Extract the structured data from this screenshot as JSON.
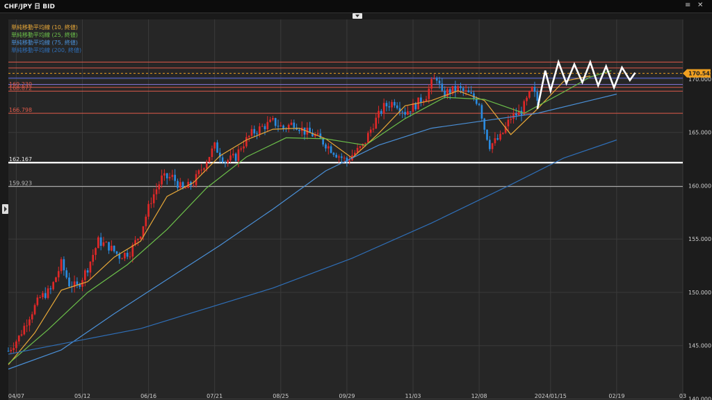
{
  "window": {
    "title": "CHF/JPY 日 BID",
    "menu_icon": "hamburger-icon",
    "close_icon": "close-icon"
  },
  "legend": [
    {
      "label": "単純移動平均線 (10, 終値)",
      "color": "#e8a838"
    },
    {
      "label": "単純移動平均線 (25, 終値)",
      "color": "#6cc04a"
    },
    {
      "label": "単純移動平均線 (75, 終値)",
      "color": "#4a90d8"
    },
    {
      "label": "単純移動平均線 (200, 終値)",
      "color": "#2f6fb8"
    }
  ],
  "current_price": {
    "label": "170.542",
    "value": 170.542,
    "color": "#f0a020"
  },
  "colors": {
    "up": "#e02828",
    "down": "#2a8be0",
    "background": "#262626",
    "grid": "#3a3a3a"
  },
  "chart_data": {
    "type": "candlestick",
    "title": "CHF/JPY 日 BID",
    "x_ticks": [
      {
        "label": "04/07",
        "t": 3
      },
      {
        "label": "05/12",
        "t": 28
      },
      {
        "label": "06/16",
        "t": 53
      },
      {
        "label": "07/21",
        "t": 78
      },
      {
        "label": "08/25",
        "t": 103
      },
      {
        "label": "09/29",
        "t": 128
      },
      {
        "label": "11/03",
        "t": 153
      },
      {
        "label": "12/08",
        "t": 178
      },
      {
        "label": "2024/01/15",
        "t": 205
      },
      {
        "label": "02/19",
        "t": 230
      },
      {
        "label": "03",
        "t": 255
      }
    ],
    "y_ticks": [
      {
        "label": "140.000",
        "value": 140
      },
      {
        "label": "145.000",
        "value": 145
      },
      {
        "label": "150.000",
        "value": 150
      },
      {
        "label": "155.000",
        "value": 155
      },
      {
        "label": "160.000",
        "value": 160
      },
      {
        "label": "165.000",
        "value": 165
      },
      {
        "label": "170.000",
        "value": 170
      }
    ],
    "ylim": [
      139.9,
      175.6
    ],
    "t_range": [
      0,
      255
    ],
    "grid": true,
    "anchors": [
      [
        0,
        144.5
      ],
      [
        4,
        145.8
      ],
      [
        8,
        147.8
      ],
      [
        12,
        149.5
      ],
      [
        16,
        150.2
      ],
      [
        20,
        152.7
      ],
      [
        23,
        150.8
      ],
      [
        26,
        150.5
      ],
      [
        30,
        152.3
      ],
      [
        34,
        154.8
      ],
      [
        38,
        154.3
      ],
      [
        42,
        153.4
      ],
      [
        46,
        153.8
      ],
      [
        50,
        155.6
      ],
      [
        54,
        158.7
      ],
      [
        58,
        160.7
      ],
      [
        62,
        160.8
      ],
      [
        66,
        159.6
      ],
      [
        70,
        160.3
      ],
      [
        74,
        162.0
      ],
      [
        78,
        163.7
      ],
      [
        82,
        162.3
      ],
      [
        86,
        162.7
      ],
      [
        88,
        163.7
      ],
      [
        92,
        164.9
      ],
      [
        96,
        165.5
      ],
      [
        100,
        166.0
      ],
      [
        104,
        165.4
      ],
      [
        108,
        165.9
      ],
      [
        112,
        165.1
      ],
      [
        116,
        164.7
      ],
      [
        120,
        163.9
      ],
      [
        124,
        163.0
      ],
      [
        128,
        162.3
      ],
      [
        130,
        162.9
      ],
      [
        134,
        163.7
      ],
      [
        138,
        165.8
      ],
      [
        142,
        167.4
      ],
      [
        146,
        167.9
      ],
      [
        150,
        166.9
      ],
      [
        154,
        167.6
      ],
      [
        158,
        168.5
      ],
      [
        160,
        169.6
      ],
      [
        162,
        170.2
      ],
      [
        164,
        168.5
      ],
      [
        166,
        168.8
      ],
      [
        170,
        169.1
      ],
      [
        174,
        168.6
      ],
      [
        178,
        167.8
      ],
      [
        180,
        165.4
      ],
      [
        182,
        163.8
      ],
      [
        186,
        164.5
      ],
      [
        190,
        166.4
      ],
      [
        194,
        167.0
      ],
      [
        198,
        169.0
      ],
      [
        200,
        168.0
      ]
    ],
    "ma_series": [
      {
        "name": "単純移動平均線 (10, 終値)",
        "color": "#e8a838",
        "points": [
          [
            0,
            143.2
          ],
          [
            10,
            146.2
          ],
          [
            20,
            150.2
          ],
          [
            30,
            151.0
          ],
          [
            40,
            153.3
          ],
          [
            50,
            154.8
          ],
          [
            60,
            159.0
          ],
          [
            70,
            160.3
          ],
          [
            80,
            162.8
          ],
          [
            90,
            164.3
          ],
          [
            100,
            165.3
          ],
          [
            110,
            165.4
          ],
          [
            120,
            164.4
          ],
          [
            130,
            162.6
          ],
          [
            140,
            164.9
          ],
          [
            150,
            167.5
          ],
          [
            160,
            168.0
          ],
          [
            170,
            168.9
          ],
          [
            180,
            168.0
          ],
          [
            190,
            164.8
          ],
          [
            200,
            167.2
          ],
          [
            210,
            169.8
          ],
          [
            220,
            170.3
          ]
        ]
      },
      {
        "name": "単純移動平均線 (25, 終値)",
        "color": "#6cc04a",
        "points": [
          [
            0,
            143.3
          ],
          [
            15,
            146.5
          ],
          [
            30,
            150.0
          ],
          [
            45,
            152.6
          ],
          [
            60,
            155.9
          ],
          [
            75,
            159.8
          ],
          [
            90,
            162.7
          ],
          [
            105,
            164.5
          ],
          [
            120,
            164.4
          ],
          [
            135,
            163.8
          ],
          [
            150,
            166.3
          ],
          [
            165,
            168.3
          ],
          [
            180,
            168.1
          ],
          [
            195,
            166.8
          ],
          [
            210,
            168.8
          ],
          [
            220,
            170.2
          ],
          [
            228,
            170.8
          ]
        ]
      },
      {
        "name": "単純移動平均線 (75, 終値)",
        "color": "#4a90d8",
        "points": [
          [
            0,
            142.8
          ],
          [
            20,
            144.6
          ],
          [
            40,
            148.0
          ],
          [
            60,
            151.2
          ],
          [
            80,
            154.4
          ],
          [
            100,
            157.8
          ],
          [
            120,
            161.4
          ],
          [
            140,
            163.8
          ],
          [
            160,
            165.4
          ],
          [
            180,
            166.1
          ],
          [
            200,
            166.8
          ],
          [
            220,
            168.0
          ],
          [
            230,
            168.6
          ]
        ]
      },
      {
        "name": "単純移動平均線 (200, 終値)",
        "color": "#2f6fb8",
        "points": [
          [
            0,
            144.2
          ],
          [
            50,
            146.6
          ],
          [
            100,
            150.4
          ],
          [
            130,
            153.2
          ],
          [
            160,
            156.5
          ],
          [
            190,
            160.1
          ],
          [
            210,
            162.6
          ],
          [
            230,
            164.3
          ]
        ]
      }
    ],
    "horizontal_lines": [
      {
        "value": 171.6,
        "color": "#e05a4a",
        "width": 1,
        "label": ""
      },
      {
        "value": 171.05,
        "color": "#e05a4a",
        "width": 1,
        "label": ""
      },
      {
        "value": 170.542,
        "color": "#f0a020",
        "width": 1,
        "label": "",
        "dashed": true
      },
      {
        "value": 170.1,
        "color": "#5a6ae0",
        "width": 1,
        "label": ""
      },
      {
        "value": 169.5,
        "color": "#8a7ae0",
        "width": 1,
        "label": ""
      },
      {
        "value": 169.23,
        "color": "#e05a4a",
        "width": 1,
        "label": "169.230"
      },
      {
        "value": 168.872,
        "color": "#e05a4a",
        "width": 1,
        "label": "168.872"
      },
      {
        "value": 166.798,
        "color": "#e05a4a",
        "width": 1,
        "label": "166.798"
      },
      {
        "value": 162.167,
        "color": "#ffffff",
        "width": 2.4,
        "label": "162.167"
      },
      {
        "value": 159.923,
        "color": "#bbbbbb",
        "width": 1,
        "label": "159.923"
      }
    ],
    "drawn_path": [
      [
        200,
        167.2
      ],
      [
        203,
        170.8
      ],
      [
        205,
        168.9
      ],
      [
        208,
        171.6
      ],
      [
        211,
        169.6
      ],
      [
        214,
        171.4
      ],
      [
        217,
        169.7
      ],
      [
        220,
        171.6
      ],
      [
        223,
        169.4
      ],
      [
        226,
        171.2
      ],
      [
        229,
        169.2
      ],
      [
        232,
        171.1
      ],
      [
        235,
        169.9
      ],
      [
        237,
        170.6
      ]
    ]
  }
}
